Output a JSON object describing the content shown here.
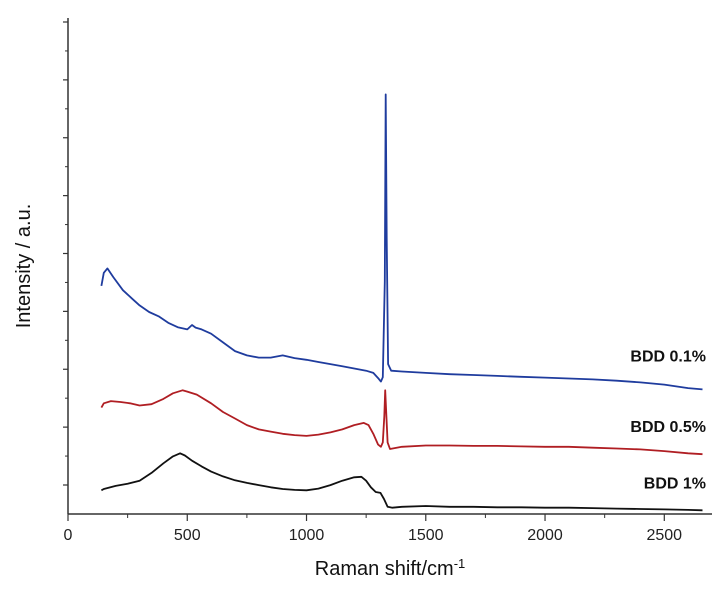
{
  "chart_data": {
    "type": "line",
    "title": "",
    "xlabel": "Raman shift/cm",
    "xlabel_sup": "-1",
    "ylabel": "Intensity / a.u.",
    "xlim": [
      0,
      2700
    ],
    "ylim": [
      0,
      100
    ],
    "x_ticks": [
      0,
      500,
      1000,
      1500,
      2000,
      2500
    ],
    "x_tick_labels": [
      "0",
      "500",
      "1000",
      "1500",
      "2000",
      "2500"
    ],
    "y_tick_count": 9,
    "y_tick_labels_shown": false,
    "grid": false,
    "legend": "inline labels at right end of each trace",
    "series": [
      {
        "name": "BDD 0.1%",
        "color": "#1f3c9e",
        "points": [
          [
            140,
            49
          ],
          [
            150,
            52
          ],
          [
            165,
            53
          ],
          [
            190,
            51
          ],
          [
            230,
            48
          ],
          [
            270,
            46
          ],
          [
            300,
            44.5
          ],
          [
            340,
            43
          ],
          [
            380,
            42
          ],
          [
            420,
            40.5
          ],
          [
            460,
            39.5
          ],
          [
            500,
            39
          ],
          [
            520,
            40
          ],
          [
            535,
            39.4
          ],
          [
            560,
            39
          ],
          [
            600,
            38
          ],
          [
            650,
            36
          ],
          [
            700,
            34
          ],
          [
            750,
            33
          ],
          [
            800,
            32.5
          ],
          [
            850,
            32.5
          ],
          [
            900,
            33
          ],
          [
            950,
            32.4
          ],
          [
            1000,
            32
          ],
          [
            1050,
            31.5
          ],
          [
            1100,
            31
          ],
          [
            1150,
            30.5
          ],
          [
            1200,
            30
          ],
          [
            1250,
            29.5
          ],
          [
            1280,
            29
          ],
          [
            1300,
            27.8
          ],
          [
            1312,
            27
          ],
          [
            1320,
            28
          ],
          [
            1328,
            50
          ],
          [
            1332,
            93
          ],
          [
            1336,
            60
          ],
          [
            1342,
            31
          ],
          [
            1355,
            29.5
          ],
          [
            1400,
            29.3
          ],
          [
            1500,
            29
          ],
          [
            1600,
            28.7
          ],
          [
            1700,
            28.5
          ],
          [
            1800,
            28.3
          ],
          [
            1900,
            28.1
          ],
          [
            2000,
            27.9
          ],
          [
            2100,
            27.7
          ],
          [
            2200,
            27.5
          ],
          [
            2300,
            27.2
          ],
          [
            2400,
            26.8
          ],
          [
            2500,
            26.3
          ],
          [
            2600,
            25.5
          ],
          [
            2660,
            25.2
          ]
        ]
      },
      {
        "name": "BDD 0.5%",
        "color": "#b01e23",
        "points": [
          [
            140,
            21
          ],
          [
            150,
            22
          ],
          [
            180,
            22.5
          ],
          [
            220,
            22.3
          ],
          [
            260,
            22
          ],
          [
            300,
            21.5
          ],
          [
            350,
            21.8
          ],
          [
            400,
            23
          ],
          [
            440,
            24.3
          ],
          [
            480,
            25
          ],
          [
            500,
            24.7
          ],
          [
            540,
            24
          ],
          [
            600,
            22
          ],
          [
            650,
            20
          ],
          [
            700,
            18.5
          ],
          [
            750,
            17
          ],
          [
            800,
            16
          ],
          [
            850,
            15.5
          ],
          [
            900,
            15
          ],
          [
            950,
            14.7
          ],
          [
            1000,
            14.5
          ],
          [
            1050,
            14.8
          ],
          [
            1100,
            15.3
          ],
          [
            1150,
            16
          ],
          [
            1200,
            17
          ],
          [
            1240,
            17.5
          ],
          [
            1260,
            17
          ],
          [
            1280,
            15
          ],
          [
            1300,
            12.5
          ],
          [
            1312,
            12
          ],
          [
            1320,
            13
          ],
          [
            1326,
            19
          ],
          [
            1330,
            25
          ],
          [
            1335,
            19
          ],
          [
            1340,
            13
          ],
          [
            1350,
            11.5
          ],
          [
            1400,
            12
          ],
          [
            1500,
            12.3
          ],
          [
            1600,
            12.3
          ],
          [
            1700,
            12.2
          ],
          [
            1800,
            12.2
          ],
          [
            1900,
            12.1
          ],
          [
            2000,
            12
          ],
          [
            2100,
            12
          ],
          [
            2200,
            11.8
          ],
          [
            2300,
            11.6
          ],
          [
            2400,
            11.4
          ],
          [
            2500,
            11
          ],
          [
            2600,
            10.5
          ],
          [
            2660,
            10.3
          ]
        ]
      },
      {
        "name": "BDD 1%",
        "color": "#111111",
        "points": [
          [
            140,
            2
          ],
          [
            150,
            2.3
          ],
          [
            200,
            3
          ],
          [
            250,
            3.5
          ],
          [
            300,
            4.2
          ],
          [
            350,
            6
          ],
          [
            400,
            8.2
          ],
          [
            440,
            9.8
          ],
          [
            470,
            10.5
          ],
          [
            490,
            10
          ],
          [
            520,
            8.8
          ],
          [
            560,
            7.5
          ],
          [
            600,
            6.3
          ],
          [
            650,
            5.2
          ],
          [
            700,
            4.3
          ],
          [
            750,
            3.7
          ],
          [
            800,
            3.2
          ],
          [
            850,
            2.7
          ],
          [
            900,
            2.3
          ],
          [
            950,
            2.1
          ],
          [
            1000,
            2
          ],
          [
            1050,
            2.4
          ],
          [
            1100,
            3.2
          ],
          [
            1150,
            4.2
          ],
          [
            1200,
            5
          ],
          [
            1230,
            5.1
          ],
          [
            1250,
            4.2
          ],
          [
            1270,
            2.7
          ],
          [
            1290,
            1.6
          ],
          [
            1310,
            1.4
          ],
          [
            1325,
            0
          ],
          [
            1340,
            -1.8
          ],
          [
            1360,
            -2
          ],
          [
            1400,
            -1.8
          ],
          [
            1500,
            -1.6
          ],
          [
            1600,
            -1.8
          ],
          [
            1700,
            -1.8
          ],
          [
            1800,
            -1.9
          ],
          [
            1900,
            -1.9
          ],
          [
            2000,
            -2
          ],
          [
            2100,
            -2
          ],
          [
            2200,
            -2.1
          ],
          [
            2300,
            -2.2
          ],
          [
            2400,
            -2.3
          ],
          [
            2500,
            -2.4
          ],
          [
            2600,
            -2.5
          ],
          [
            2660,
            -2.6
          ]
        ]
      }
    ]
  }
}
